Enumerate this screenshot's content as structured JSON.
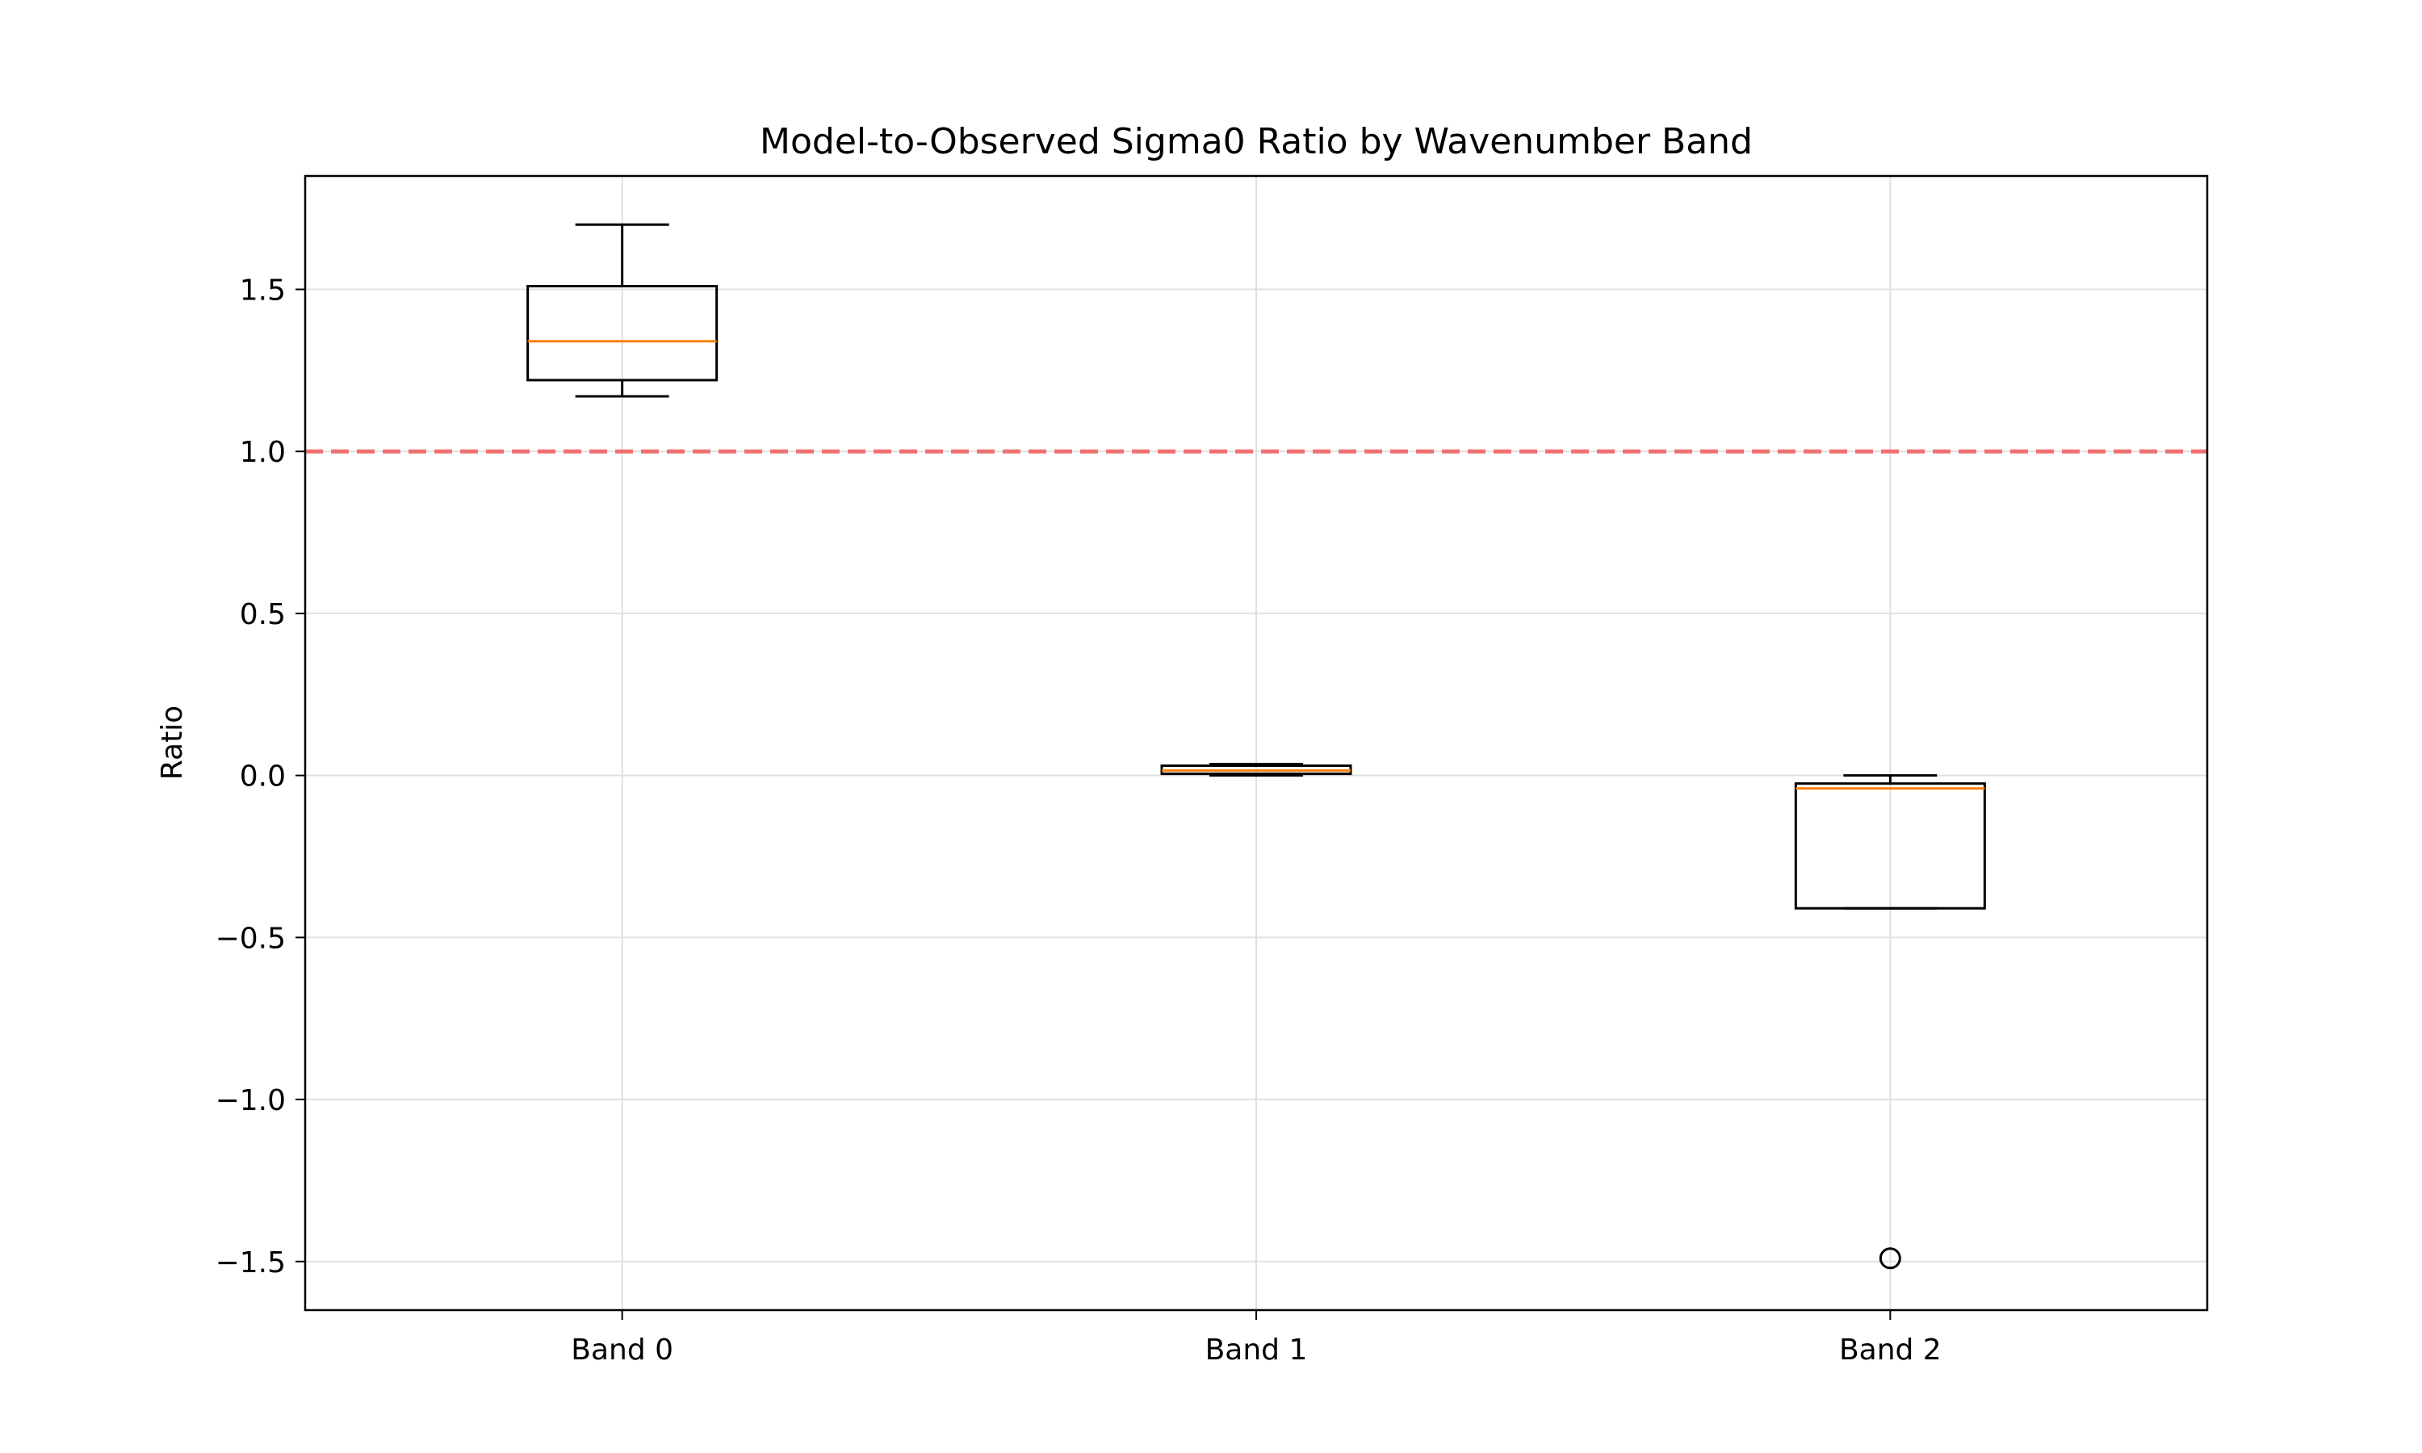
{
  "chart_data": {
    "type": "box",
    "title": "Model-to-Observed Sigma0 Ratio by Wavenumber Band",
    "xlabel": "",
    "ylabel": "Ratio",
    "categories": [
      "Band 0",
      "Band 1",
      "Band 2"
    ],
    "boxes": [
      {
        "category": "Band 0",
        "whisker_low": 1.17,
        "q1": 1.22,
        "median": 1.34,
        "q3": 1.51,
        "whisker_high": 1.7,
        "outliers": []
      },
      {
        "category": "Band 1",
        "whisker_low": 0.0,
        "q1": 0.005,
        "median": 0.015,
        "q3": 0.03,
        "whisker_high": 0.035,
        "outliers": []
      },
      {
        "category": "Band 2",
        "whisker_low": -0.41,
        "q1": -0.41,
        "median": -0.04,
        "q3": -0.025,
        "whisker_high": 0.0,
        "outliers": [
          -1.49
        ]
      }
    ],
    "reference_line": {
      "y": 1.0,
      "color": "#f07070",
      "style": "dashed"
    },
    "ylim": [
      -1.65,
      1.85
    ],
    "yticks": [
      -1.5,
      -1.0,
      -0.5,
      0.0,
      0.5,
      1.0,
      1.5
    ],
    "ytick_labels": [
      "−1.5",
      "−1.0",
      "−0.5",
      "0.0",
      "0.5",
      "1.0",
      "1.5"
    ],
    "grid": true,
    "colors": {
      "box": "#000000",
      "median": "#ff7f0e",
      "grid": "#e0e0e0"
    }
  }
}
